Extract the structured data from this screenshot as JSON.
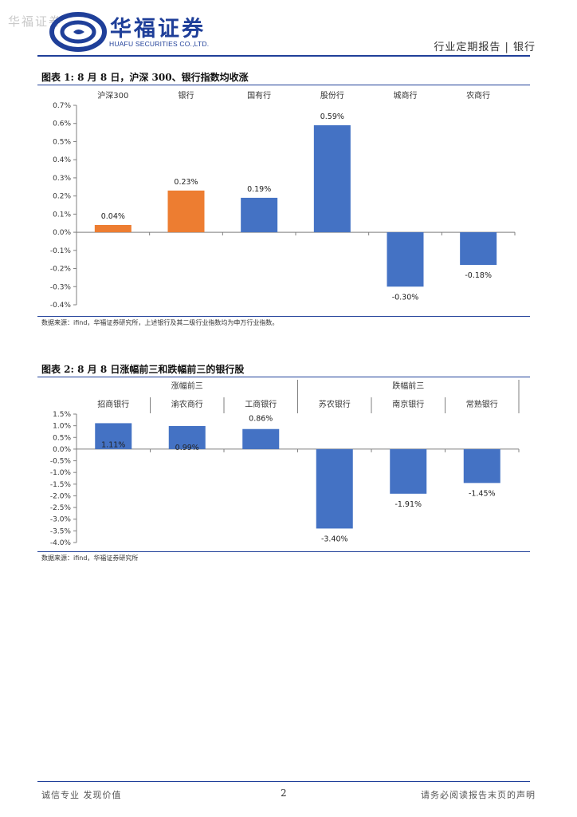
{
  "header": {
    "watermark": "华福证券",
    "logo_cn": "华福证券",
    "logo_en": "HUAFU SECURITIES CO.,LTD.",
    "report_type": "行业定期报告 | 银行",
    "brand_color": "#1f3f99"
  },
  "figure1": {
    "title": "图表 1:  8 月 8 日，沪深 300、银行指数均收涨",
    "source": "数据来源：ifind，华福证券研究所，上述银行及其二级行业指数均为申万行业指数。",
    "chart_data": {
      "type": "bar",
      "categories": [
        "沪深300",
        "银行",
        "国有行",
        "股份行",
        "城商行",
        "农商行"
      ],
      "values": [
        0.04,
        0.23,
        0.19,
        0.59,
        -0.3,
        -0.18
      ],
      "value_labels": [
        "0.04%",
        "0.23%",
        "0.19%",
        "0.59%",
        "-0.30%",
        "-0.18%"
      ],
      "colors": [
        "#ed7d31",
        "#ed7d31",
        "#4472c4",
        "#4472c4",
        "#4472c4",
        "#4472c4"
      ],
      "ylim": [
        -0.4,
        0.7
      ],
      "yticks": [
        0.7,
        0.6,
        0.5,
        0.4,
        0.3,
        0.2,
        0.1,
        0.0,
        -0.1,
        -0.2,
        -0.3,
        -0.4
      ],
      "ytick_labels": [
        "0.7%",
        "0.6%",
        "0.5%",
        "0.4%",
        "0.3%",
        "0.2%",
        "0.1%",
        "0.0%",
        "-0.1%",
        "-0.2%",
        "-0.3%",
        "-0.4%"
      ],
      "unit": "%"
    }
  },
  "figure2": {
    "title": "图表 2:  8 月 8 日涨幅前三和跌幅前三的银行股",
    "source": "数据来源：ifind，华福证券研究所",
    "chart_data": {
      "type": "bar",
      "groups": [
        {
          "name": "涨幅前三",
          "categories": [
            "招商银行",
            "渝农商行",
            "工商银行"
          ]
        },
        {
          "name": "跌幅前三",
          "categories": [
            "苏农银行",
            "南京银行",
            "常熟银行"
          ]
        }
      ],
      "categories": [
        "招商银行",
        "渝农商行",
        "工商银行",
        "苏农银行",
        "南京银行",
        "常熟银行"
      ],
      "values": [
        1.11,
        0.99,
        0.86,
        -3.4,
        -1.91,
        -1.45
      ],
      "value_labels": [
        "1.11%",
        "0.99%",
        "0.86%",
        "-3.40%",
        "-1.91%",
        "-1.45%"
      ],
      "color": "#4472c4",
      "ylim": [
        -4.0,
        1.5
      ],
      "yticks": [
        1.5,
        1.0,
        0.5,
        0.0,
        -0.5,
        -1.0,
        -1.5,
        -2.0,
        -2.5,
        -3.0,
        -3.5,
        -4.0
      ],
      "ytick_labels": [
        "1.5%",
        "1.0%",
        "0.5%",
        "0.0%",
        "-0.5%",
        "-1.0%",
        "-1.5%",
        "-2.0%",
        "-2.5%",
        "-3.0%",
        "-3.5%",
        "-4.0%"
      ],
      "unit": "%"
    }
  },
  "footer": {
    "left": "诚信专业  发现价值",
    "page": "2",
    "right": "请务必阅读报告末页的声明"
  }
}
